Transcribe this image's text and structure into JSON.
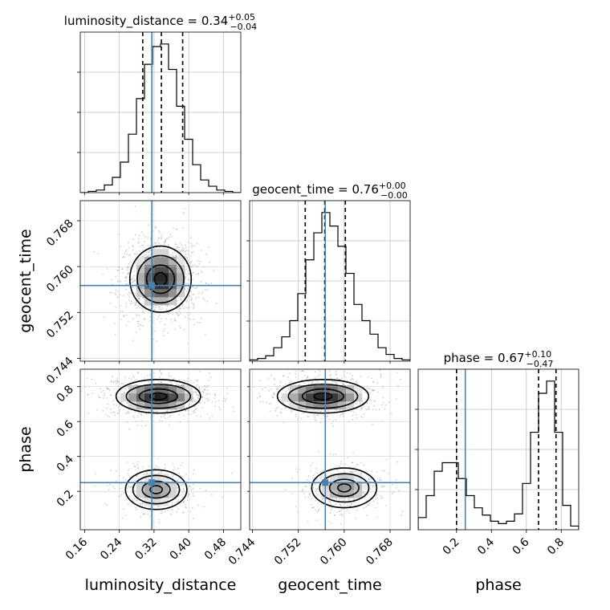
{
  "chart_data": {
    "type": "corner",
    "parameters": [
      {
        "key": "luminosity_distance",
        "label": "luminosity_distance",
        "title": {
          "name": "luminosity_distance",
          "median": "0.34",
          "plus": "+0.05",
          "minus": "−0.04"
        },
        "range": [
          0.15,
          0.52
        ],
        "ticks": [
          0.16,
          0.24,
          0.32,
          0.4,
          0.48
        ],
        "tick_labels": [
          "0.16",
          "0.24",
          "0.32",
          "0.40",
          "0.48"
        ],
        "truth": 0.315,
        "quantiles": [
          0.294,
          0.337,
          0.386
        ],
        "hist_counts": [
          0,
          1,
          2,
          6,
          12,
          24,
          46,
          74,
          101,
          115,
          117,
          97,
          68,
          42,
          22,
          10,
          5,
          2,
          1,
          0
        ]
      },
      {
        "key": "geocent_time",
        "label": "geocent_time",
        "title": {
          "name": "geocent_time",
          "median": "0.76",
          "plus": "+0.00",
          "minus": "−0.00"
        },
        "range": [
          0.7435,
          0.7715
        ],
        "ticks": [
          0.744,
          0.752,
          0.76,
          0.768
        ],
        "tick_labels": [
          "0.744",
          "0.752",
          "0.760",
          "0.768"
        ],
        "truth": 0.7567,
        "quantiles": [
          0.7532,
          0.7566,
          0.7602
        ],
        "hist_counts": [
          1,
          2,
          4,
          10,
          18,
          30,
          50,
          75,
          95,
          110,
          100,
          85,
          65,
          42,
          30,
          20,
          10,
          5,
          2,
          1
        ]
      },
      {
        "key": "phase",
        "label": "phase",
        "title": {
          "name": "phase",
          "median": "0.67",
          "plus": "+0.10",
          "minus": "−0.47"
        },
        "range": [
          -0.02,
          0.9
        ],
        "ticks": [
          0.2,
          0.4,
          0.6,
          0.8
        ],
        "tick_labels": [
          "0.2",
          "0.4",
          "0.6",
          "0.8"
        ],
        "truth": 0.25,
        "quantiles": [
          0.2,
          0.67,
          0.77
        ],
        "hist_counts": [
          10,
          28,
          48,
          55,
          55,
          42,
          28,
          18,
          12,
          7,
          5,
          7,
          13,
          38,
          80,
          112,
          122,
          80,
          20,
          3
        ]
      }
    ],
    "joint": [
      {
        "x": "luminosity_distance",
        "y": "geocent_time",
        "modes": [
          {
            "cx": 0.335,
            "cy": 0.7578,
            "sx": 0.04,
            "sy": 0.0033,
            "w": 1.0
          }
        ]
      },
      {
        "x": "luminosity_distance",
        "y": "phase",
        "modes": [
          {
            "cx": 0.33,
            "cy": 0.745,
            "sx": 0.055,
            "sy": 0.055,
            "w": 1.0
          },
          {
            "cx": 0.325,
            "cy": 0.21,
            "sx": 0.04,
            "sy": 0.065,
            "w": 0.62
          }
        ]
      },
      {
        "x": "geocent_time",
        "y": "phase",
        "modes": [
          {
            "cx": 0.7563,
            "cy": 0.745,
            "sx": 0.0045,
            "sy": 0.055,
            "w": 1.0
          },
          {
            "cx": 0.76,
            "cy": 0.22,
            "sx": 0.0032,
            "sy": 0.065,
            "w": 0.62
          }
        ]
      }
    ],
    "colors": {
      "truth": "#4682b4",
      "hist": "#000000",
      "grid": "#c0c0c0",
      "density": "#000000"
    },
    "grid": true
  }
}
